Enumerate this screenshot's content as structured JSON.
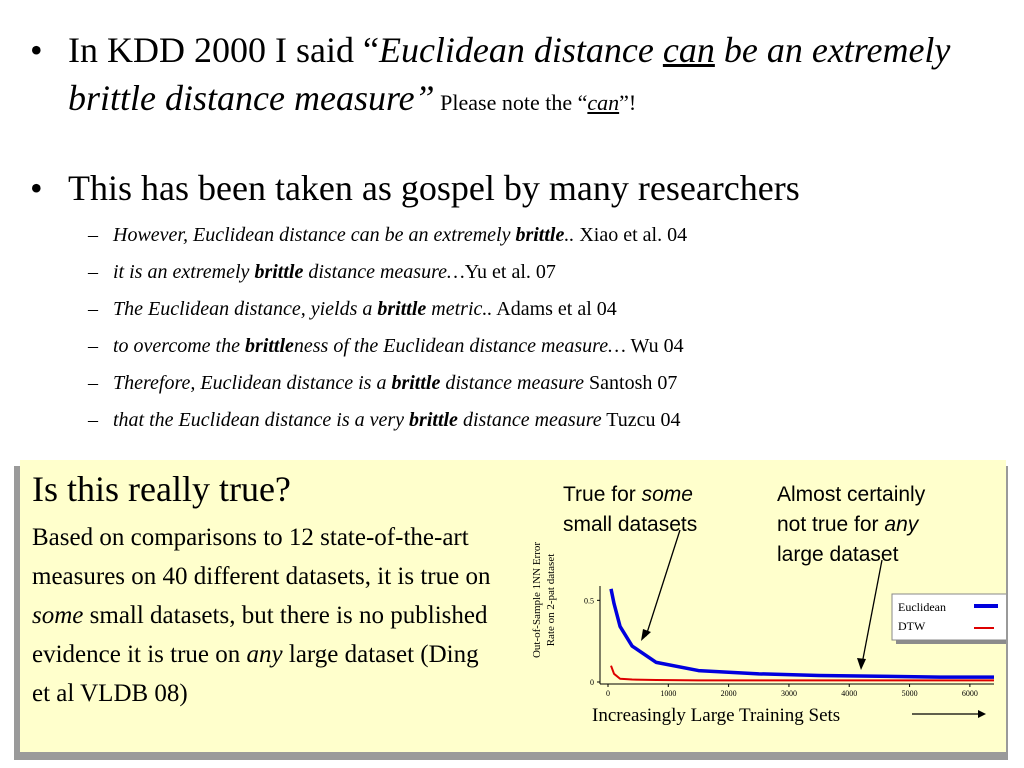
{
  "bullet1": {
    "bullet": "•",
    "prefix": "In KDD 2000 I said “",
    "q1": "Euclidean distance ",
    "q_can": "can",
    "q2": " be an extremely brittle distance measure”",
    "note_pre": " Please note the “",
    "note_can": "can",
    "note_post": "”!"
  },
  "bullet2": {
    "bullet": "•",
    "text": "This has been taken as gospel by many researchers"
  },
  "quotes": [
    {
      "dash": "–",
      "pre": "However, Euclidean distance can be an extremely ",
      "bold": "brittle",
      "post": "..",
      "cite": " Xiao et al. 04"
    },
    {
      "dash": "–",
      "pre": "it is an extremely ",
      "bold": "brittle",
      "post": " distance measure…",
      "cite": "Yu et al. 07"
    },
    {
      "dash": "–",
      "pre": "The Euclidean distance, yields a ",
      "bold": "brittle",
      "post": " metric..",
      "cite": " Adams et al 04"
    },
    {
      "dash": "–",
      "pre": "to overcome the ",
      "bold": "brittle",
      "post": "ness of the Euclidean distance measure…",
      "cite": " Wu 04"
    },
    {
      "dash": "–",
      "pre": "Therefore, Euclidean distance is a ",
      "bold": "brittle",
      "post": " distance measure",
      "cite": " Santosh 07"
    },
    {
      "dash": "–",
      "pre": " that the Euclidean distance is a very ",
      "bold": "brittle",
      "post": " distance measure",
      "cite": " Tuzcu 04"
    }
  ],
  "box": {
    "title": "Is this really true?",
    "body_1": "Based on comparisons to 12 state-of-the-art measures on 40 different datasets, it is true on ",
    "body_some": "some",
    "body_2": " small datasets, but there is no published evidence it is true on ",
    "body_any": "any",
    "body_3": " large dataset (Ding et al VLDB 08)"
  },
  "annotations": {
    "left_1": "True for ",
    "left_em": "some",
    "left_2": "small datasets",
    "right_1": "Almost certainly",
    "right_2": "not true for ",
    "right_em": "any",
    "right_3": "large dataset"
  },
  "chart_data": {
    "type": "line",
    "ylabel_1": "Out-of-Sample  1NN Error",
    "ylabel_2": "Rate  on 2-pat dataset",
    "xlabel": "Increasingly Large Training Sets",
    "x_ticks": [
      "0",
      "1000",
      "2000",
      "3000",
      "4000",
      "5000",
      "6000"
    ],
    "y_ticks": [
      "0",
      "0.5"
    ],
    "xlim": [
      0,
      6400
    ],
    "ylim": [
      0,
      0.6
    ],
    "legend_position": "right",
    "series": [
      {
        "name": "Euclidean",
        "color": "#0000dd",
        "x": [
          50,
          100,
          200,
          400,
          800,
          1500,
          2500,
          3500,
          4500,
          5500,
          6400
        ],
        "y": [
          0.57,
          0.48,
          0.34,
          0.22,
          0.12,
          0.07,
          0.05,
          0.04,
          0.035,
          0.03,
          0.03
        ]
      },
      {
        "name": "DTW",
        "color": "#dd0000",
        "x": [
          50,
          100,
          200,
          400,
          800,
          1500,
          2500,
          3500,
          4500,
          5500,
          6400
        ],
        "y": [
          0.1,
          0.05,
          0.02,
          0.015,
          0.012,
          0.01,
          0.01,
          0.01,
          0.01,
          0.01,
          0.01
        ]
      }
    ]
  }
}
